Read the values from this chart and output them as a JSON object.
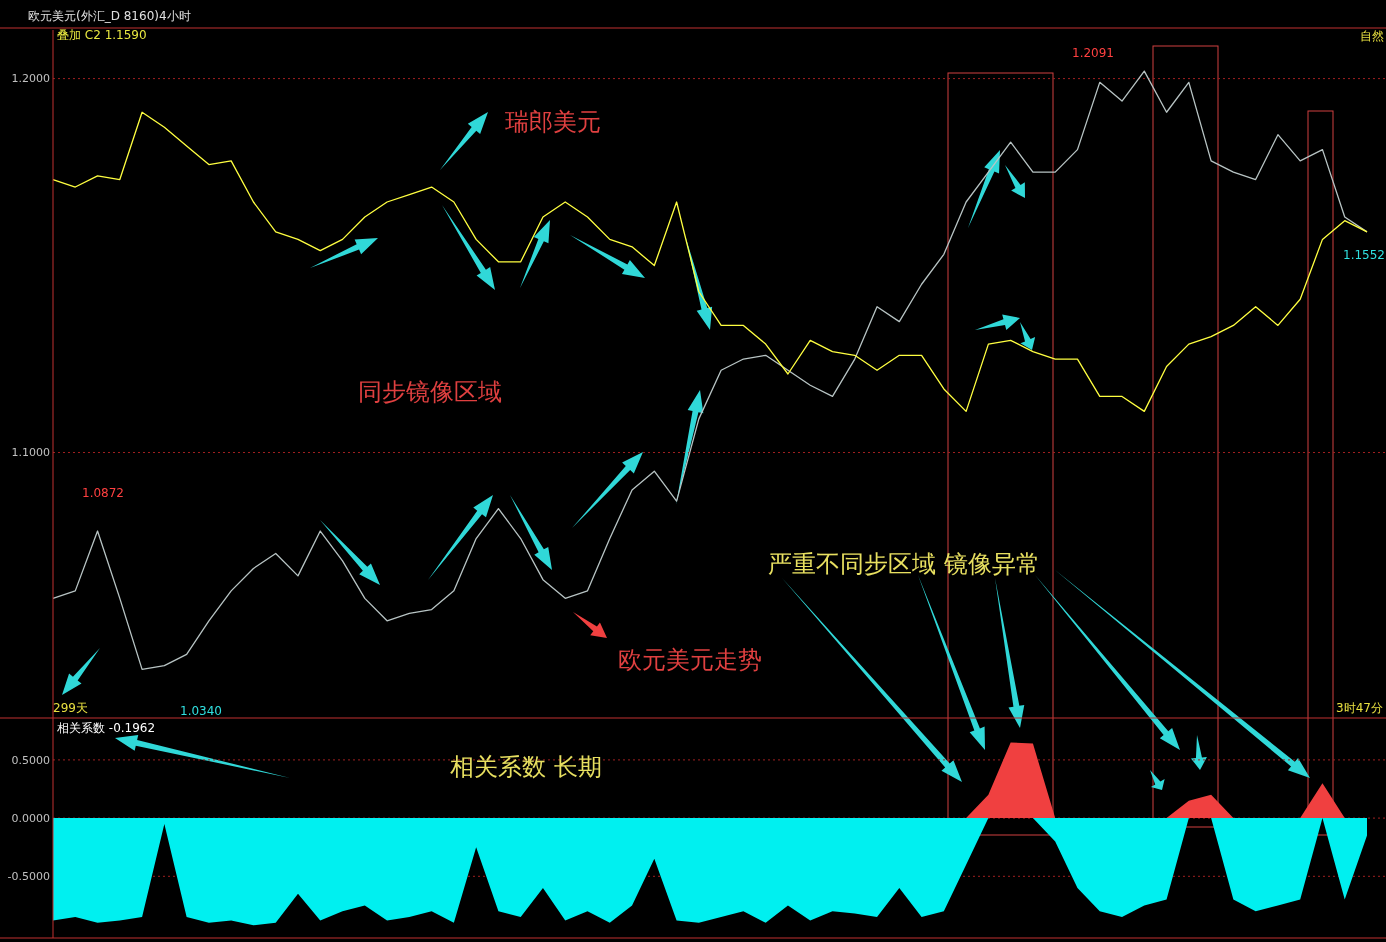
{
  "chart_data": [
    {
      "type": "line",
      "title": "欧元美元(外汇_D 8160)4小时",
      "categories": [
        null,
        null,
        null,
        null,
        null,
        null,
        null,
        null,
        null,
        null,
        null,
        null,
        null,
        null,
        null,
        null,
        null,
        null,
        null,
        null,
        null,
        null,
        null,
        null,
        null,
        null,
        null,
        null,
        null,
        null,
        null,
        null,
        null,
        null,
        null,
        null,
        null,
        null,
        null,
        null,
        null,
        null,
        null,
        null,
        null,
        null,
        null,
        null,
        null,
        null,
        null,
        null,
        null,
        null,
        null,
        null,
        null,
        null,
        null,
        null
      ],
      "ylim": [
        1.029,
        1.213
      ],
      "yticks": [
        {
          "value": 1.1,
          "label": "1.1000"
        },
        {
          "value": 1.2,
          "label": "1.2000"
        }
      ],
      "grid": "y",
      "tick_labels": "y",
      "series": [
        {
          "color": "#b8c4c4",
          "values": [
            1.061,
            1.063,
            1.079,
            1.061,
            1.042,
            1.043,
            1.046,
            1.055,
            1.063,
            1.069,
            1.073,
            1.067,
            1.079,
            1.071,
            1.061,
            1.055,
            1.057,
            1.058,
            1.063,
            1.077,
            1.085,
            1.077,
            1.066,
            1.061,
            1.063,
            1.077,
            1.09,
            1.095,
            1.087,
            1.109,
            1.122,
            1.125,
            1.126,
            1.122,
            1.118,
            1.115,
            1.125,
            1.139,
            1.135,
            1.145,
            1.153,
            1.167,
            1.175,
            1.183,
            1.175,
            1.175,
            1.181,
            1.199,
            1.194,
            1.202,
            1.191,
            1.199,
            1.178,
            1.175,
            1.173,
            1.185,
            1.178,
            1.181,
            1.163,
            1.159
          ]
        },
        {
          "color": "#ffff40",
          "values": [
            1.173,
            1.171,
            1.174,
            1.173,
            1.191,
            1.187,
            1.182,
            1.177,
            1.178,
            1.167,
            1.159,
            1.157,
            1.154,
            1.157,
            1.163,
            1.167,
            1.169,
            1.171,
            1.167,
            1.157,
            1.151,
            1.151,
            1.163,
            1.167,
            1.163,
            1.157,
            1.155,
            1.15,
            1.167,
            1.143,
            1.134,
            1.134,
            1.129,
            1.121,
            1.13,
            1.127,
            1.126,
            1.122,
            1.126,
            1.126,
            1.117,
            1.111,
            1.129,
            1.13,
            1.127,
            1.125,
            1.125,
            1.115,
            1.115,
            1.111,
            1.123,
            1.129,
            1.131,
            1.134,
            1.139,
            1.134,
            1.141,
            1.157,
            1.162,
            1.159
          ]
        }
      ],
      "annotations": [
        "叠加  C2 1.1590",
        "瑞郎美元",
        "同步镜像区域",
        "欧元美元走势",
        "严重不同步区域 镜像异常",
        "1.2091",
        "1.0872",
        "1.0340",
        "1.1552",
        "299天",
        "3时47分",
        "自然"
      ]
    },
    {
      "type": "area",
      "categories": [
        null,
        null,
        null,
        null,
        null,
        null,
        null,
        null,
        null,
        null,
        null,
        null,
        null,
        null,
        null,
        null,
        null,
        null,
        null,
        null,
        null,
        null,
        null,
        null,
        null,
        null,
        null,
        null,
        null,
        null,
        null,
        null,
        null,
        null,
        null,
        null,
        null,
        null,
        null,
        null,
        null,
        null,
        null,
        null,
        null,
        null,
        null,
        null,
        null,
        null,
        null,
        null,
        null,
        null,
        null,
        null,
        null,
        null,
        null,
        null
      ],
      "ylim": [
        -1.03,
        0.86
      ],
      "yticks": [
        {
          "value": 0.5,
          "label": "0.5000"
        },
        {
          "value": 0,
          "label": "0.0000"
        },
        {
          "value": -0.5,
          "label": "-0.5000"
        }
      ],
      "grid": "y",
      "tick_labels": "y",
      "series": [
        {
          "color": "#00f0f0",
          "values": [
            -0.88,
            -0.85,
            -0.9,
            -0.88,
            -0.85,
            -0.05,
            -0.85,
            -0.9,
            -0.88,
            -0.92,
            -0.9,
            -0.65,
            -0.88,
            -0.8,
            -0.75,
            -0.88,
            -0.85,
            -0.8,
            -0.9,
            -0.25,
            -0.8,
            -0.85,
            -0.6,
            -0.88,
            -0.8,
            -0.9,
            -0.75,
            -0.35,
            -0.88,
            -0.9,
            -0.85,
            -0.8,
            -0.9,
            -0.75,
            -0.88,
            -0.8,
            -0.82,
            -0.85,
            -0.6,
            -0.85,
            -0.8,
            -0.4,
            0,
            0,
            0,
            -0.2,
            -0.6,
            -0.8,
            -0.85,
            -0.75,
            -0.7,
            0,
            0,
            -0.7,
            -0.8,
            -0.75,
            -0.7,
            0,
            -0.7,
            -0.15
          ]
        },
        {
          "color": "#f04040",
          "values": [
            0,
            0,
            0,
            0,
            0,
            0,
            0,
            0,
            0,
            0,
            0,
            0,
            0,
            0,
            0,
            0,
            0,
            0,
            0,
            0,
            0,
            0,
            0,
            0,
            0,
            0,
            0,
            0,
            0,
            0,
            0,
            0,
            0,
            0,
            0,
            0,
            0,
            0,
            0,
            0,
            0,
            0,
            0.2,
            0.65,
            0.64,
            0,
            0,
            0,
            0,
            0,
            0,
            0.15,
            0.2,
            0,
            0,
            0,
            0,
            0.3,
            0,
            0
          ]
        }
      ],
      "annotations": [
        "相关系数  -0.1962",
        "相关系数 长期"
      ]
    }
  ]
}
